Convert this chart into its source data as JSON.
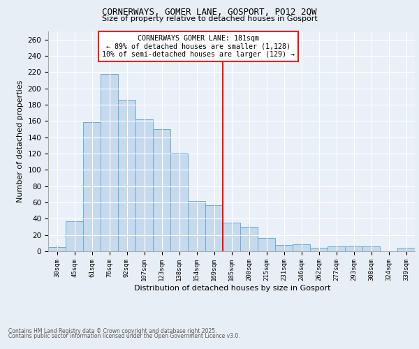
{
  "title_line1": "CORNERWAYS, GOMER LANE, GOSPORT, PO12 2QW",
  "title_line2": "Size of property relative to detached houses in Gosport",
  "xlabel": "Distribution of detached houses by size in Gosport",
  "ylabel": "Number of detached properties",
  "categories": [
    "30sqm",
    "45sqm",
    "61sqm",
    "76sqm",
    "92sqm",
    "107sqm",
    "123sqm",
    "138sqm",
    "154sqm",
    "169sqm",
    "185sqm",
    "200sqm",
    "215sqm",
    "231sqm",
    "246sqm",
    "262sqm",
    "277sqm",
    "293sqm",
    "308sqm",
    "324sqm",
    "339sqm"
  ],
  "values": [
    5,
    37,
    159,
    218,
    186,
    162,
    150,
    121,
    62,
    57,
    35,
    30,
    16,
    8,
    9,
    4,
    6,
    6,
    6,
    0,
    4
  ],
  "bar_color": "#c6d9ed",
  "bar_edge_color": "#6aaad4",
  "vline_color": "red",
  "annotation_title": "CORNERWAYS GOMER LANE: 181sqm",
  "annotation_line1": "← 89% of detached houses are smaller (1,128)",
  "annotation_line2": "10% of semi-detached houses are larger (129) →",
  "annotation_box_color": "red",
  "ylim": [
    0,
    270
  ],
  "yticks": [
    0,
    20,
    40,
    60,
    80,
    100,
    120,
    140,
    160,
    180,
    200,
    220,
    240,
    260
  ],
  "footer_line1": "Contains HM Land Registry data © Crown copyright and database right 2025.",
  "footer_line2": "Contains public sector information licensed under the Open Government Licence v3.0.",
  "bg_color": "#e8eef5",
  "plot_bg_color": "#eaf0f7",
  "vline_index": 9.5
}
